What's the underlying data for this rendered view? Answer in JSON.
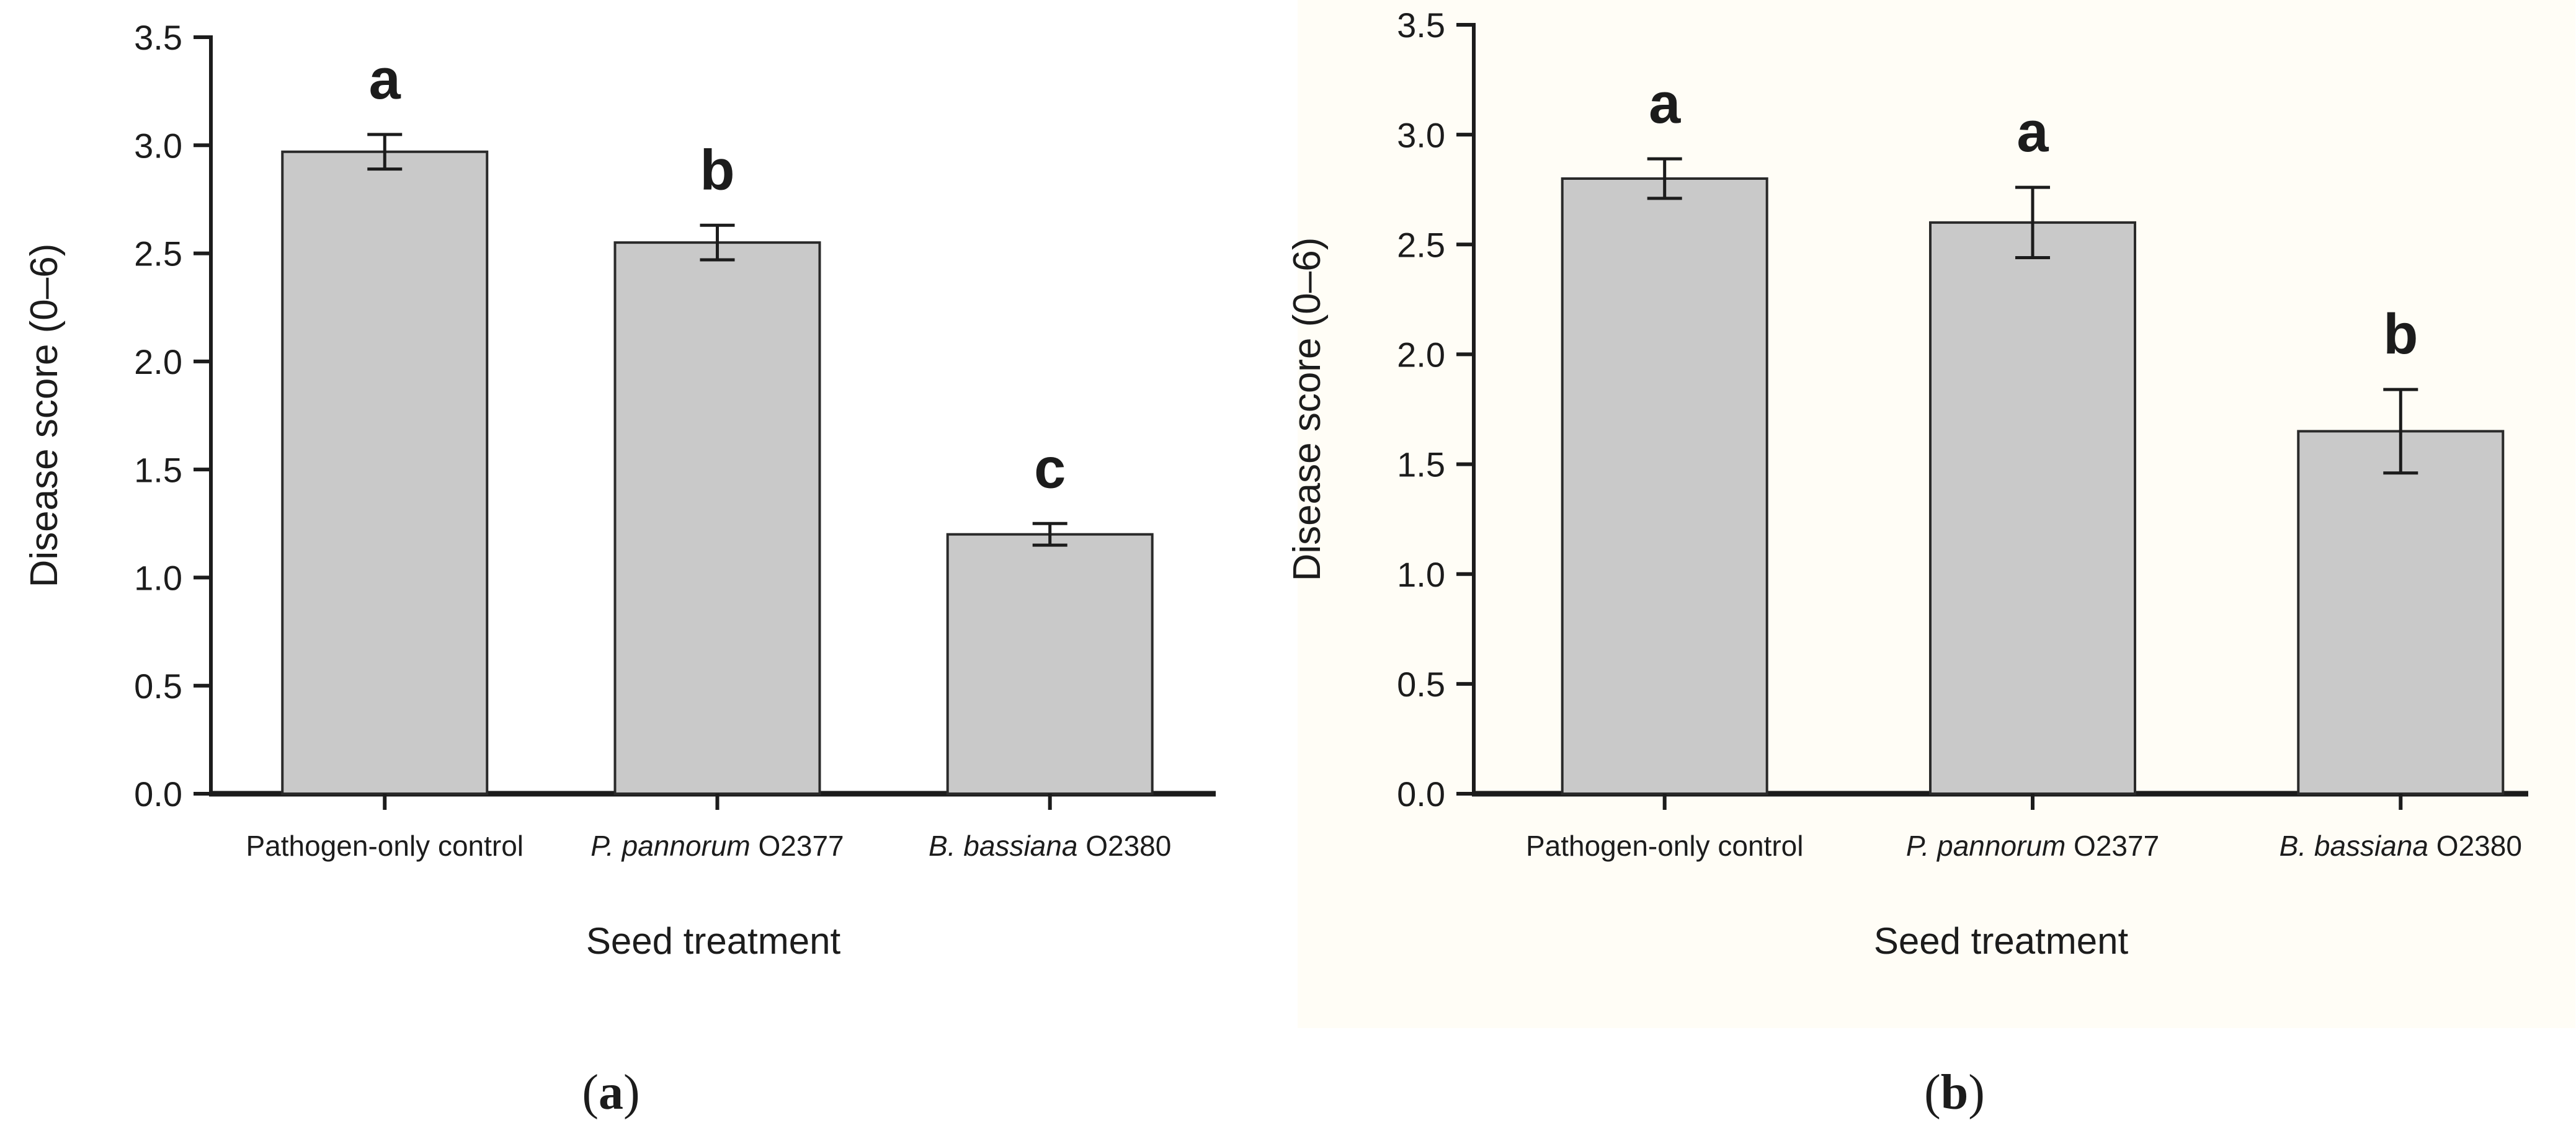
{
  "figure": {
    "type": "two-panel scientific bar figure",
    "panels": [
      {
        "id": "a",
        "caption": "(a)",
        "caption_letter": "a",
        "background": "#ffffff"
      },
      {
        "id": "b",
        "caption": "(b)",
        "caption_letter": "b",
        "background": "#fffdf6"
      }
    ],
    "ink_color": "#1c1c1c",
    "bar_fill": "#c9c9c9",
    "bar_stroke": "#2a2a2a"
  },
  "chart_data": [
    {
      "type": "bar",
      "panel": "a",
      "title": "",
      "xlabel": "Seed treatment",
      "ylabel": "Disease score (0–6)",
      "ylim": [
        0,
        3.5
      ],
      "ytick_step": 0.5,
      "ytick_labels": [
        "0.0",
        "0.5",
        "1.0",
        "1.5",
        "2.0",
        "2.5",
        "3.0",
        "3.5"
      ],
      "categories": [
        "Pathogen-only control",
        "P. pannorum O2377",
        "B. bassiana O2380"
      ],
      "categories_italic_prefix": [
        "",
        "P. pannorum",
        "B. bassiana"
      ],
      "values": [
        2.97,
        2.55,
        1.2
      ],
      "errors": [
        0.08,
        0.08,
        0.05
      ],
      "sig_letters": [
        "a",
        "b",
        "c"
      ],
      "grid": "off",
      "legend": "none"
    },
    {
      "type": "bar",
      "panel": "b",
      "title": "",
      "xlabel": "Seed treatment",
      "ylabel": "Disease score (0–6)",
      "ylim": [
        0,
        3.5
      ],
      "ytick_step": 0.5,
      "ytick_labels": [
        "0.0",
        "0.5",
        "1.0",
        "1.5",
        "2.0",
        "2.5",
        "3.0",
        "3.5"
      ],
      "categories": [
        "Pathogen-only control",
        "P. pannorum O2377",
        "B. bassiana O2380"
      ],
      "categories_italic_prefix": [
        "",
        "P. pannorum",
        "B. bassiana"
      ],
      "values": [
        2.8,
        2.6,
        1.65
      ],
      "errors": [
        0.09,
        0.16,
        0.19
      ],
      "sig_letters": [
        "a",
        "a",
        "b"
      ],
      "grid": "off",
      "legend": "none"
    }
  ]
}
